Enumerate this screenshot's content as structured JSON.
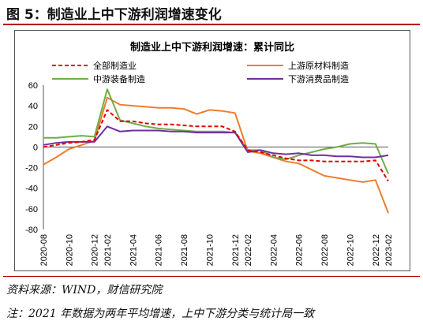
{
  "figure": {
    "title": "图 5：制造业上中下游利润增速变化",
    "source": "资料来源：WIND，财信研究院",
    "footnote": "注：2021 年数据为两年平均增速，上中下游分类与统计局一致"
  },
  "chart_data": {
    "type": "line",
    "title": "制造业上中下游利润增速：累计同比",
    "xlabel": "",
    "ylabel": "",
    "ylim": [
      -80,
      60
    ],
    "yticks": [
      60,
      40,
      20,
      0,
      -20,
      -40,
      -60,
      -80
    ],
    "x": [
      "2020-08",
      "2020-09",
      "2020-10",
      "2020-11",
      "2020-12",
      "2021-02",
      "2021-03",
      "2021-04",
      "2021-05",
      "2021-06",
      "2021-07",
      "2021-08",
      "2021-09",
      "2021-10",
      "2021-11",
      "2021-12",
      "2022-02",
      "2022-03",
      "2022-04",
      "2022-05",
      "2022-06",
      "2022-07",
      "2022-08",
      "2022-09",
      "2022-10",
      "2022-11",
      "2022-12",
      "2023-02"
    ],
    "xtick_labels": [
      "2020-08",
      "2020-10",
      "2020-12",
      "2021-02",
      "2021-04",
      "2021-06",
      "2021-08",
      "2021-10",
      "2021-12",
      "2022-02",
      "2022-04",
      "2022-06",
      "2022-08",
      "2022-10",
      "2022-12",
      "2023-02"
    ],
    "legend_position": "top",
    "grid": false,
    "series": [
      {
        "name": "全部制造业",
        "color": "#e00000",
        "dash": "dashed",
        "values": [
          0,
          2,
          4,
          5,
          7,
          36,
          25,
          25,
          23,
          22,
          22,
          21,
          20,
          20,
          20,
          15,
          -3,
          -5,
          -8,
          -11,
          -13,
          -13,
          -14,
          -14,
          -14,
          -14,
          -13,
          -33
        ]
      },
      {
        "name": "上游原材料制造",
        "color": "#ed7d31",
        "dash": "solid",
        "values": [
          -17,
          -10,
          -2,
          2,
          6,
          48,
          41,
          40,
          39,
          38,
          38,
          37,
          32,
          36,
          35,
          33,
          -4,
          -6,
          -10,
          -14,
          -16,
          -22,
          -28,
          -30,
          -32,
          -34,
          -32,
          -64
        ]
      },
      {
        "name": "中游装备制造",
        "color": "#70ad47",
        "dash": "solid",
        "values": [
          9,
          9,
          10,
          11,
          10,
          56,
          26,
          23,
          20,
          18,
          17,
          16,
          15,
          15,
          15,
          14,
          -3,
          -3,
          -10,
          -12,
          -8,
          -5,
          -2,
          0,
          3,
          4,
          3,
          -26
        ]
      },
      {
        "name": "下游消费品制造",
        "color": "#7030a0",
        "dash": "solid",
        "values": [
          2,
          4,
          5,
          5,
          5,
          20,
          15,
          16,
          16,
          16,
          15,
          15,
          14,
          14,
          14,
          14,
          -5,
          -3,
          -6,
          -7,
          -6,
          -8,
          -8,
          -9,
          -9,
          -10,
          -10,
          -8
        ]
      }
    ]
  }
}
